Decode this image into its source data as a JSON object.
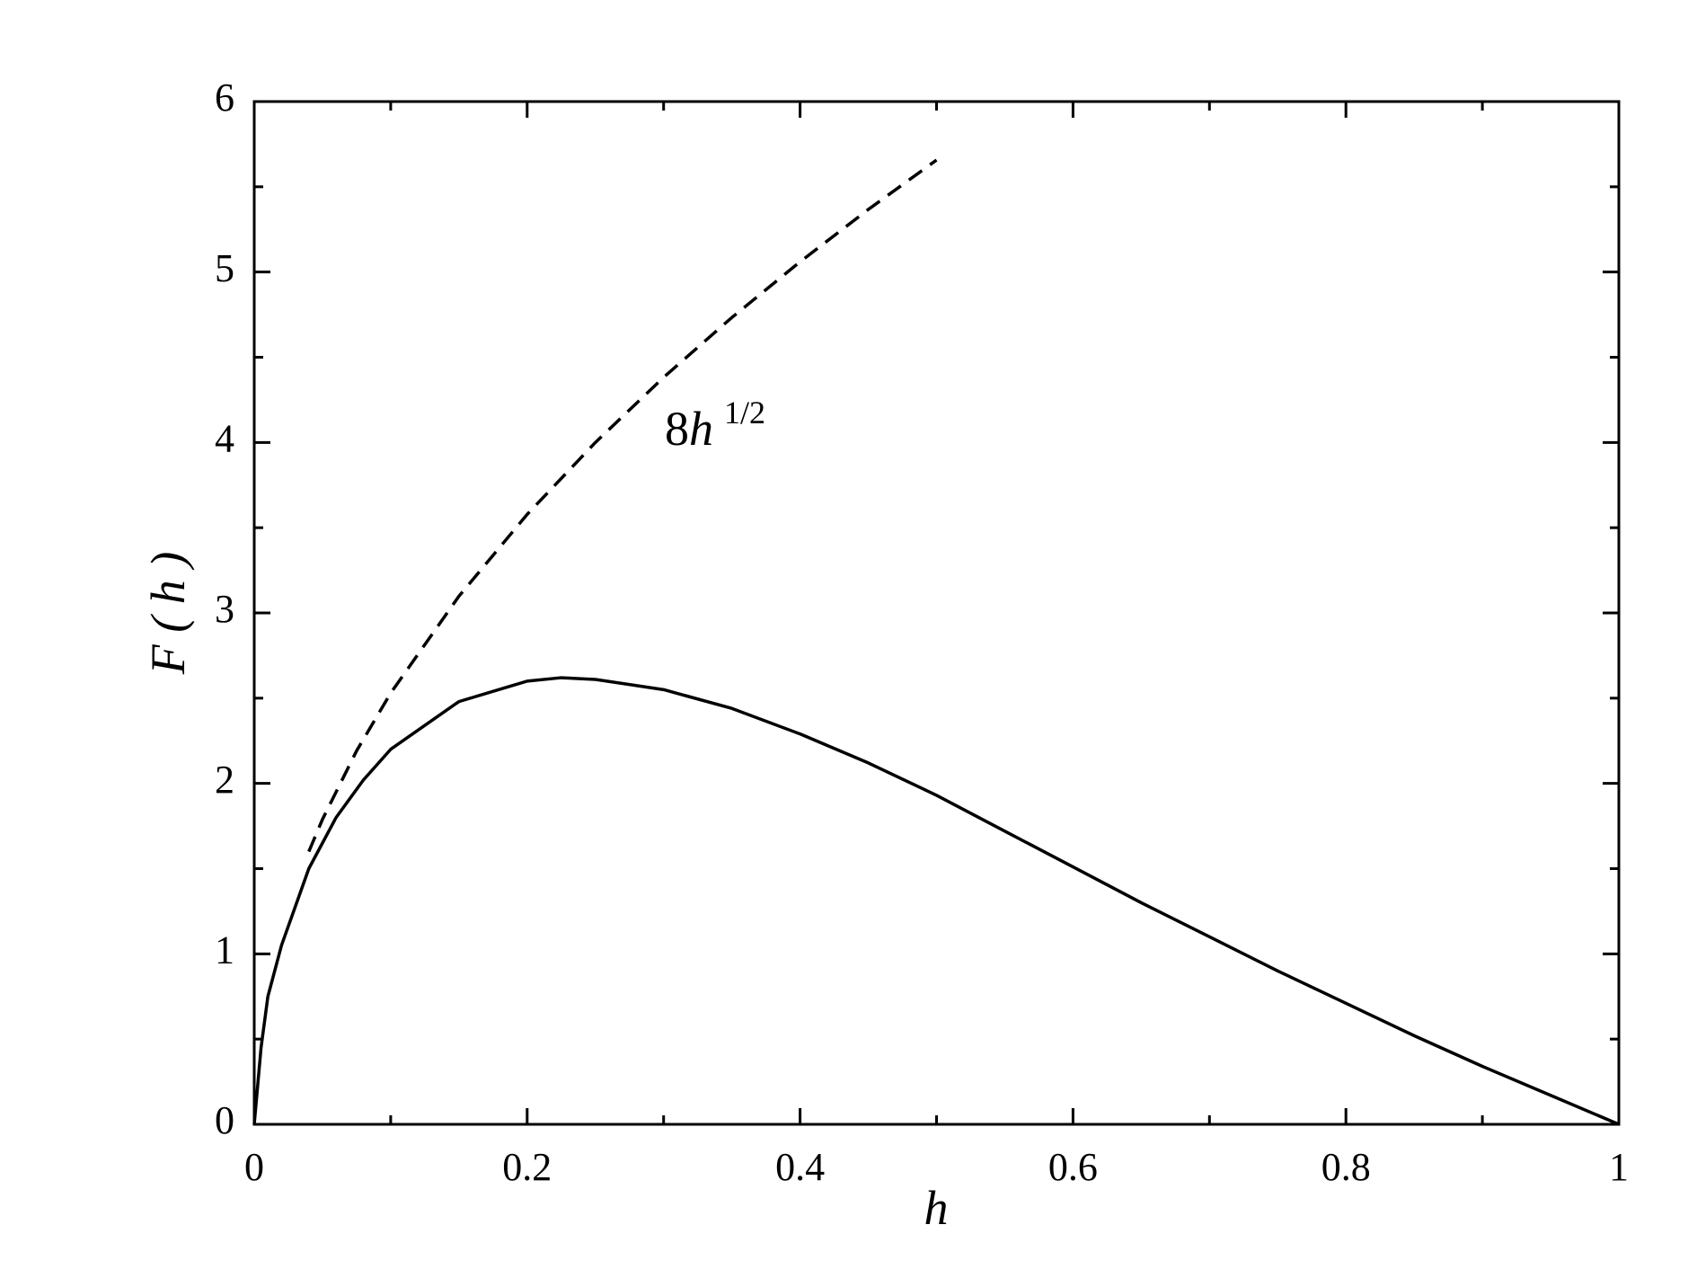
{
  "chart_data": {
    "type": "line",
    "xlabel": "h",
    "ylabel": "F ( h )",
    "annotation": {
      "base": "8",
      "variable": "h",
      "exponent": "1/2"
    },
    "xlim": [
      0,
      1
    ],
    "ylim": [
      0,
      6
    ],
    "xticks": [
      0,
      0.2,
      0.4,
      0.6,
      0.8,
      1
    ],
    "yticks": [
      0,
      1,
      2,
      3,
      4,
      5,
      6
    ],
    "xminor": [
      0.1,
      0.3,
      0.5,
      0.7,
      0.9
    ],
    "yminor": [
      0.5,
      1.5,
      2.5,
      3.5,
      4.5,
      5.5
    ],
    "grid": false,
    "series": [
      {
        "color": "#000000",
        "line_style": "solid",
        "x": [
          0,
          0.005,
          0.01,
          0.02,
          0.04,
          0.06,
          0.08,
          0.1,
          0.15,
          0.2,
          0.225,
          0.25,
          0.3,
          0.35,
          0.4,
          0.45,
          0.5,
          0.55,
          0.6,
          0.65,
          0.7,
          0.75,
          0.8,
          0.85,
          0.9,
          0.95,
          1
        ],
        "values": [
          0,
          0.45,
          0.75,
          1.05,
          1.5,
          1.8,
          2.02,
          2.2,
          2.48,
          2.6,
          2.62,
          2.61,
          2.55,
          2.44,
          2.29,
          2.12,
          1.93,
          1.72,
          1.51,
          1.3,
          1.1,
          0.9,
          0.71,
          0.52,
          0.34,
          0.17,
          0
        ]
      },
      {
        "color": "#000000",
        "line_style": "dashed",
        "x": [
          0.04,
          0.05,
          0.075,
          0.1,
          0.15,
          0.2,
          0.25,
          0.3,
          0.35,
          0.4,
          0.45,
          0.5
        ],
        "values": [
          1.6,
          1.789,
          2.191,
          2.53,
          3.098,
          3.578,
          4.0,
          4.382,
          4.733,
          5.06,
          5.367,
          5.657
        ]
      }
    ]
  }
}
